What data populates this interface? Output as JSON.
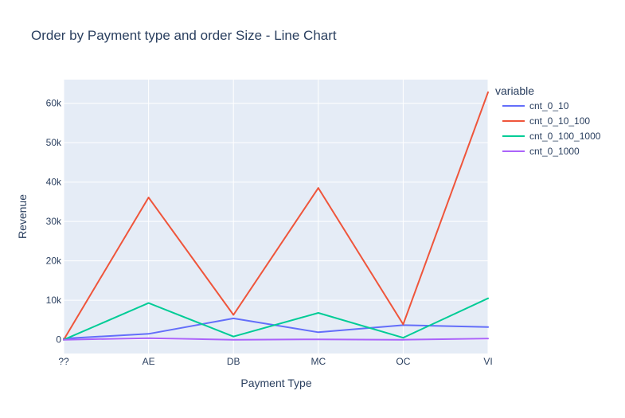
{
  "chart_data": {
    "type": "line",
    "title": "Order by Payment type and order Size - Line Chart",
    "xlabel": "Payment Type",
    "ylabel": "Revenue",
    "categories": [
      "??",
      "AE",
      "DB",
      "MC",
      "OC",
      "VI"
    ],
    "ylim": [
      -3500,
      66000
    ],
    "yticks": [
      0,
      10000,
      20000,
      30000,
      40000,
      50000,
      60000
    ],
    "ytick_labels": [
      "0",
      "10k",
      "20k",
      "30k",
      "40k",
      "50k",
      "60k"
    ],
    "grid": true,
    "legend_title": "variable",
    "legend_position": "top-right",
    "series": [
      {
        "name": "cnt_0_10",
        "color": "#636efa",
        "values": [
          300,
          1500,
          5400,
          1900,
          3700,
          3200
        ]
      },
      {
        "name": "cnt_0_10_100",
        "color": "#ef553b",
        "values": [
          0,
          36100,
          6300,
          38500,
          3900,
          62800
        ]
      },
      {
        "name": "cnt_0_100_1000",
        "color": "#00cc96",
        "values": [
          0,
          9300,
          800,
          6800,
          500,
          10500
        ]
      },
      {
        "name": "cnt_0_1000",
        "color": "#ab63fa",
        "values": [
          0,
          400,
          0,
          100,
          0,
          300
        ]
      }
    ]
  }
}
